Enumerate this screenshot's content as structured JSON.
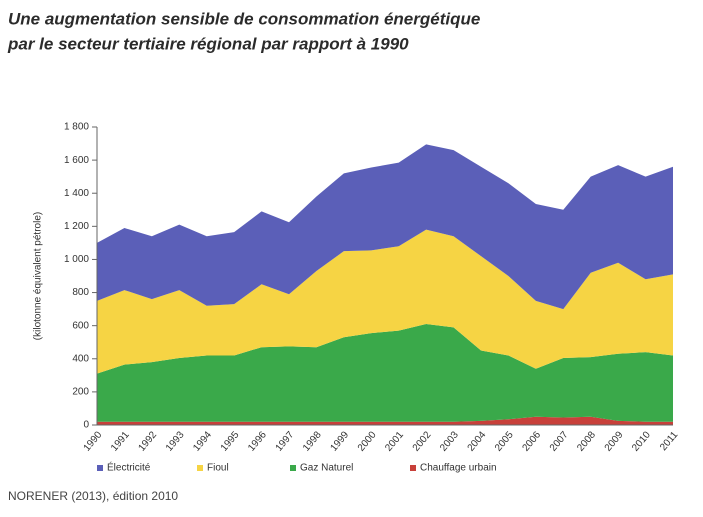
{
  "chart_data": {
    "type": "stacked_area",
    "title": [
      "Une augmentation sensible de consommation énergétique",
      "par le secteur tertiaire régional par rapport à 1990"
    ],
    "y_label": "(kilotonne équivalent pétrole)",
    "source": "NORENER (2013), édition 2010",
    "categories": [
      "1990",
      "1991",
      "1992",
      "1993",
      "1994",
      "1995",
      "1996",
      "1997",
      "1998",
      "1999",
      "2000",
      "2001",
      "2002",
      "2003",
      "2004",
      "2005",
      "2006",
      "2007",
      "2008",
      "2009",
      "2010",
      "2011"
    ],
    "series": [
      {
        "name": "Électricité",
        "color": "#5b5fb8",
        "values": [
          350,
          375,
          380,
          395,
          420,
          435,
          440,
          435,
          450,
          470,
          500,
          505,
          515,
          520,
          540,
          560,
          585,
          600,
          580,
          590,
          620,
          650
        ]
      },
      {
        "name": "Fioul",
        "color": "#f6d444",
        "values": [
          440,
          450,
          380,
          410,
          300,
          310,
          380,
          315,
          460,
          520,
          500,
          510,
          570,
          550,
          570,
          480,
          410,
          295,
          510,
          550,
          440,
          490
        ]
      },
      {
        "name": "Gaz Naturel",
        "color": "#3aa94a",
        "values": [
          290,
          345,
          360,
          385,
          400,
          400,
          450,
          455,
          450,
          510,
          535,
          550,
          590,
          570,
          425,
          385,
          290,
          360,
          360,
          405,
          420,
          400
        ]
      },
      {
        "name": "Chauffage urbain",
        "color": "#c8403a",
        "values": [
          20,
          20,
          20,
          20,
          20,
          20,
          20,
          20,
          20,
          20,
          20,
          20,
          20,
          20,
          25,
          35,
          50,
          45,
          50,
          25,
          20,
          20
        ]
      }
    ],
    "ylim": [
      0,
      1800
    ],
    "yticks": [
      0,
      200,
      400,
      600,
      800,
      {
        "value": 1000,
        "label": "1 000"
      },
      {
        "value": 1200,
        "label": "1 200"
      },
      {
        "value": 1400,
        "label": "1 400"
      },
      {
        "value": 1600,
        "label": "1 600"
      },
      {
        "value": 1800,
        "label": "1 800"
      }
    ]
  }
}
